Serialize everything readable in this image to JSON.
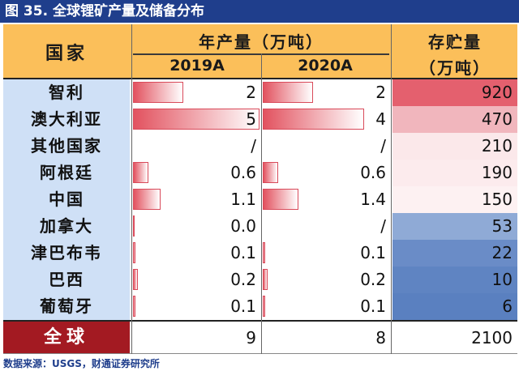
{
  "title": "图 35. 全球锂矿产量及储备分布",
  "header": {
    "country": "国家",
    "production": "年产量（万吨）",
    "y2019": "2019A",
    "y2020": "2020A",
    "reserve_line1": "存贮量",
    "reserve_line2": "（万吨）"
  },
  "rows": [
    {
      "country": "智利",
      "p2019": "2",
      "p2019_val": 2,
      "p2020": "2",
      "p2020_val": 2,
      "reserve": "920",
      "reserve_color": "#e4606e"
    },
    {
      "country": "澳大利亚",
      "p2019": "5",
      "p2019_val": 5,
      "p2020": "4",
      "p2020_val": 4,
      "reserve": "470",
      "reserve_color": "#f1b6bd"
    },
    {
      "country": "其他国家",
      "p2019": "/",
      "p2019_val": null,
      "p2020": "/",
      "p2020_val": null,
      "reserve": "210",
      "reserve_color": "#fbe8ea"
    },
    {
      "country": "阿根廷",
      "p2019": "0.6",
      "p2019_val": 0.6,
      "p2020": "0.6",
      "p2020_val": 0.6,
      "reserve": "190",
      "reserve_color": "#fcebed"
    },
    {
      "country": "中国",
      "p2019": "1.1",
      "p2019_val": 1.1,
      "p2020": "1.4",
      "p2020_val": 1.4,
      "reserve": "150",
      "reserve_color": "#fdf1f2"
    },
    {
      "country": "加拿大",
      "p2019": "0.0",
      "p2019_val": 0.0,
      "p2020": "/",
      "p2020_val": null,
      "reserve": "53",
      "reserve_color": "#8faad6"
    },
    {
      "country": "津巴布韦",
      "p2019": "0.1",
      "p2019_val": 0.1,
      "p2020": "0.1",
      "p2020_val": 0.1,
      "reserve": "22",
      "reserve_color": "#6a8cc7"
    },
    {
      "country": "巴西",
      "p2019": "0.2",
      "p2019_val": 0.2,
      "p2020": "0.2",
      "p2020_val": 0.2,
      "reserve": "10",
      "reserve_color": "#5f84c2"
    },
    {
      "country": "葡萄牙",
      "p2019": "0.1",
      "p2019_val": 0.1,
      "p2020": "0.1",
      "p2020_val": 0.1,
      "reserve": "6",
      "reserve_color": "#5a80c0"
    }
  ],
  "total": {
    "label": "全球",
    "p2019": "9",
    "p2020": "8",
    "reserve": "2100"
  },
  "source": "数据来源：USGS，财通证券研究所",
  "colors": {
    "title_bg": "#1f3e8c",
    "header_bg": "#fbbf5a",
    "country_bg": "#cfe0f6",
    "total_bg": "#a31a22",
    "bar": "#e2525f"
  }
}
